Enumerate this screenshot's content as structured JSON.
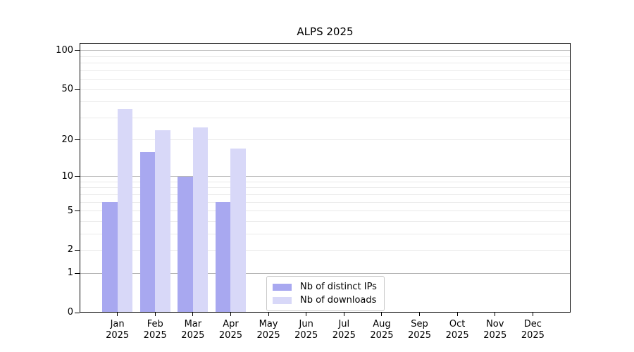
{
  "chart_data": {
    "type": "bar",
    "title": "ALPS 2025",
    "categories": [
      "Jan",
      "Feb",
      "Mar",
      "Apr",
      "May",
      "Jun",
      "Jul",
      "Aug",
      "Sep",
      "Oct",
      "Nov",
      "Dec"
    ],
    "x_year_label": "2025",
    "series": [
      {
        "name": "Nb of distinct IPs",
        "color": "#a8a8f0",
        "values": [
          6,
          16,
          10,
          6,
          0,
          0,
          0,
          0,
          0,
          0,
          0,
          0
        ]
      },
      {
        "name": "Nb of downloads",
        "color": "#d8d8f8",
        "values": [
          35,
          24,
          25,
          17,
          0,
          0,
          0,
          0,
          0,
          0,
          0,
          0
        ]
      }
    ],
    "y_scale": "log1p",
    "ylim": [
      0,
      114
    ],
    "y_ticks": [
      0,
      1,
      2,
      5,
      10,
      20,
      50,
      100
    ],
    "gridlines": {
      "major": [
        1,
        10,
        100
      ],
      "minor": [
        2,
        3,
        4,
        5,
        6,
        7,
        8,
        9,
        20,
        30,
        40,
        50,
        60,
        70,
        80,
        90
      ]
    },
    "grid_on": true,
    "legend_position": "lower center"
  }
}
